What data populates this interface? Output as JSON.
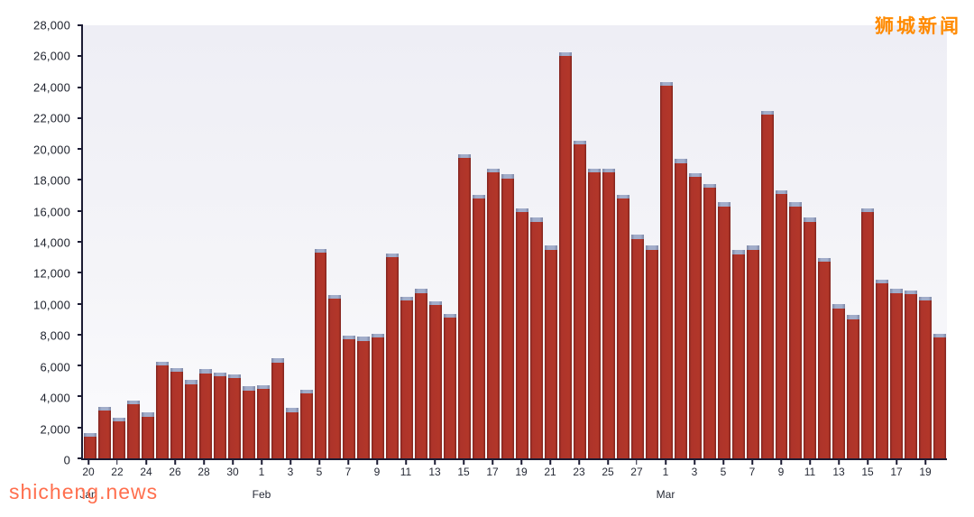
{
  "watermarks": {
    "top_right": "狮城新闻",
    "bottom_left": "shicheng.news"
  },
  "colors": {
    "bar": "#ae342a",
    "bar_edge": "#7e231d",
    "cap": "#a2adca",
    "axis": "#1b1b33",
    "labels": "#20242f",
    "watermark_top": "#ff8a00",
    "watermark_bottom": "#ff6f4e"
  },
  "chart_data": {
    "type": "bar",
    "stacked": true,
    "title": "",
    "xlabel": "",
    "ylabel": "",
    "grid": false,
    "legend": "none",
    "ylim": [
      0,
      28000
    ],
    "y_tick_step": 2000,
    "y_ticks": [
      "0",
      "2,000",
      "4,000",
      "6,000",
      "8,000",
      "10,000",
      "12,000",
      "14,000",
      "16,000",
      "18,000",
      "20,000",
      "22,000",
      "24,000",
      "26,000",
      "28,000"
    ],
    "x_dates": [
      "Jan 20",
      "Jan 21",
      "Jan 22",
      "Jan 23",
      "Jan 24",
      "Jan 25",
      "Jan 26",
      "Jan 27",
      "Jan 28",
      "Jan 29",
      "Jan 30",
      "Jan 31",
      "Feb 1",
      "Feb 2",
      "Feb 3",
      "Feb 4",
      "Feb 5",
      "Feb 6",
      "Feb 7",
      "Feb 8",
      "Feb 9",
      "Feb 10",
      "Feb 11",
      "Feb 12",
      "Feb 13",
      "Feb 14",
      "Feb 15",
      "Feb 16",
      "Feb 17",
      "Feb 18",
      "Feb 19",
      "Feb 20",
      "Feb 21",
      "Feb 22",
      "Feb 23",
      "Feb 24",
      "Feb 25",
      "Feb 26",
      "Feb 27",
      "Feb 28",
      "Mar 1",
      "Mar 2",
      "Mar 3",
      "Mar 4",
      "Mar 5",
      "Mar 6",
      "Mar 7",
      "Mar 8",
      "Mar 9",
      "Mar 10",
      "Mar 11",
      "Mar 12",
      "Mar 13",
      "Mar 14",
      "Mar 15",
      "Mar 16",
      "Mar 17",
      "Mar 18",
      "Mar 19",
      "Mar 20"
    ],
    "series": [
      {
        "name": "daily-count-main-red",
        "color": "#ae342a",
        "values": [
          1400,
          3100,
          2400,
          3500,
          2700,
          6000,
          5600,
          4800,
          5500,
          5300,
          5200,
          4400,
          4500,
          6200,
          3000,
          4200,
          13300,
          10300,
          7700,
          7600,
          7800,
          13000,
          10200,
          10700,
          9900,
          9100,
          19400,
          16800,
          18500,
          18100,
          15900,
          15300,
          13500,
          26000,
          20300,
          18500,
          18500,
          16800,
          14200,
          13500,
          24100,
          19100,
          18200,
          17500,
          16300,
          13200,
          13500,
          22200,
          17100,
          16300,
          15300,
          12700,
          9700,
          9000,
          15900,
          11300,
          10700,
          10600,
          10200,
          7800
        ]
      }
    ],
    "cap_segment": {
      "name": "top-cap-blue-gray",
      "color": "#a2adca",
      "estimated_value_per_bar": 250
    },
    "x_ticks": [
      {
        "index": 0,
        "label": "20"
      },
      {
        "index": 2,
        "label": "22"
      },
      {
        "index": 4,
        "label": "24"
      },
      {
        "index": 6,
        "label": "26"
      },
      {
        "index": 8,
        "label": "28"
      },
      {
        "index": 10,
        "label": "30"
      },
      {
        "index": 12,
        "label": "1"
      },
      {
        "index": 14,
        "label": "3"
      },
      {
        "index": 16,
        "label": "5"
      },
      {
        "index": 18,
        "label": "7"
      },
      {
        "index": 20,
        "label": "9"
      },
      {
        "index": 22,
        "label": "11"
      },
      {
        "index": 24,
        "label": "13"
      },
      {
        "index": 26,
        "label": "15"
      },
      {
        "index": 28,
        "label": "17"
      },
      {
        "index": 30,
        "label": "19"
      },
      {
        "index": 32,
        "label": "21"
      },
      {
        "index": 34,
        "label": "23"
      },
      {
        "index": 36,
        "label": "25"
      },
      {
        "index": 38,
        "label": "27"
      },
      {
        "index": 40,
        "label": "1"
      },
      {
        "index": 42,
        "label": "3"
      },
      {
        "index": 44,
        "label": "5"
      },
      {
        "index": 46,
        "label": "7"
      },
      {
        "index": 48,
        "label": "9"
      },
      {
        "index": 50,
        "label": "11"
      },
      {
        "index": 52,
        "label": "13"
      },
      {
        "index": 54,
        "label": "15"
      },
      {
        "index": 56,
        "label": "17"
      },
      {
        "index": 58,
        "label": "19"
      }
    ],
    "months": [
      {
        "index": 0,
        "label": "Jan"
      },
      {
        "index": 12,
        "label": "Feb"
      },
      {
        "index": 40,
        "label": "Mar"
      }
    ]
  }
}
